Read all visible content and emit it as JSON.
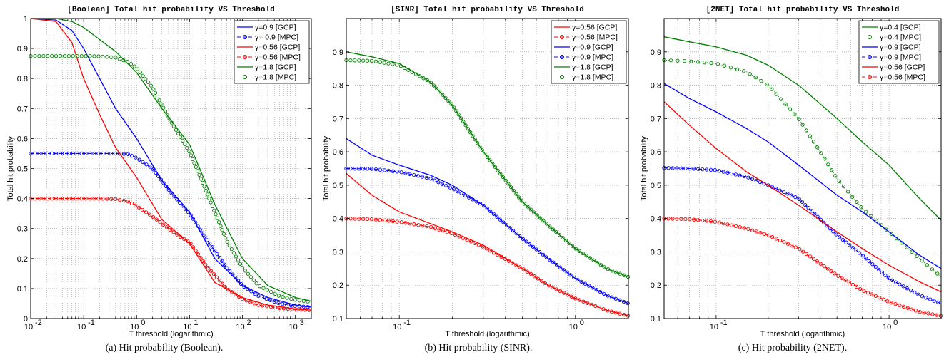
{
  "chart_data": [
    {
      "type": "line",
      "title": "[Boolean] Total hit probability VS Threshold",
      "xlabel": "T threshold (logarithmic)",
      "ylabel": "Total hit probability",
      "caption": "(a) Hit probability (Boolean).",
      "xscale": "log",
      "xlim": [
        0.01,
        2000
      ],
      "ylim": [
        0,
        1
      ],
      "xticks": [
        {
          "v": 0.01,
          "b": "10",
          "e": "-2"
        },
        {
          "v": 0.1,
          "b": "10",
          "e": "-1"
        },
        {
          "v": 1,
          "b": "10",
          "e": "0"
        },
        {
          "v": 10,
          "b": "10",
          "e": "1"
        },
        {
          "v": 100,
          "b": "10",
          "e": "2"
        },
        {
          "v": 1000,
          "b": "10",
          "e": "3"
        }
      ],
      "yticks": [
        "0",
        "0.1",
        "0.2",
        "0.3",
        "0.4",
        "0.5",
        "0.6",
        "0.7",
        "0.8",
        "0.9",
        "1"
      ],
      "grid": true,
      "legend_position": "top-right",
      "series": [
        {
          "name": "γ=0.9 [GCP]",
          "color": "#0000ff",
          "style": "solid",
          "x": [
            0.01,
            0.03,
            0.06,
            0.1,
            0.2,
            0.4,
            1,
            3,
            10,
            30,
            100,
            300,
            1000,
            2000
          ],
          "y": [
            1.0,
            0.995,
            0.96,
            0.9,
            0.8,
            0.7,
            0.6,
            0.46,
            0.355,
            0.2,
            0.11,
            0.07,
            0.045,
            0.038
          ]
        },
        {
          "name": "γ= 0.9 [MPC]",
          "color": "#0000ff",
          "style": "dash-circle",
          "x": [
            0.01,
            0.02,
            0.05,
            0.1,
            0.2,
            0.4,
            0.7,
            1,
            2,
            4,
            7,
            10,
            20,
            50,
            100,
            200,
            500,
            1000,
            2000
          ],
          "y": [
            0.55,
            0.55,
            0.55,
            0.55,
            0.55,
            0.55,
            0.548,
            0.535,
            0.5,
            0.43,
            0.38,
            0.35,
            0.27,
            0.17,
            0.11,
            0.075,
            0.05,
            0.042,
            0.038
          ]
        },
        {
          "name": "γ=0.56 [GCP]",
          "color": "#ff0000",
          "style": "solid",
          "x": [
            0.01,
            0.03,
            0.06,
            0.1,
            0.2,
            0.4,
            1,
            3,
            10,
            30,
            100,
            300,
            1000,
            2000
          ],
          "y": [
            1.0,
            0.99,
            0.92,
            0.8,
            0.68,
            0.57,
            0.47,
            0.33,
            0.25,
            0.12,
            0.07,
            0.045,
            0.032,
            0.028
          ]
        },
        {
          "name": "γ=0.56 [MPC]",
          "color": "#ff0000",
          "style": "dash-circle",
          "x": [
            0.01,
            0.02,
            0.05,
            0.1,
            0.2,
            0.4,
            0.7,
            1,
            2,
            4,
            7,
            10,
            20,
            50,
            100,
            200,
            500,
            1000,
            2000
          ],
          "y": [
            0.4,
            0.4,
            0.4,
            0.4,
            0.4,
            0.398,
            0.39,
            0.375,
            0.34,
            0.3,
            0.27,
            0.255,
            0.18,
            0.1,
            0.065,
            0.045,
            0.035,
            0.03,
            0.028
          ]
        },
        {
          "name": "γ=1.8 [GCP]",
          "color": "#008000",
          "style": "solid",
          "x": [
            0.01,
            0.03,
            0.06,
            0.1,
            0.2,
            0.4,
            1,
            3,
            10,
            30,
            100,
            300,
            1000,
            2000
          ],
          "y": [
            1.0,
            1.0,
            0.99,
            0.97,
            0.93,
            0.89,
            0.82,
            0.7,
            0.58,
            0.38,
            0.2,
            0.11,
            0.07,
            0.058
          ]
        },
        {
          "name": "γ=1.8 [MPC]",
          "color": "#008000",
          "style": "circle",
          "x": [
            0.01,
            0.02,
            0.05,
            0.1,
            0.2,
            0.4,
            0.7,
            1,
            2,
            4,
            7,
            10,
            20,
            50,
            100,
            200,
            500,
            1000,
            2000
          ],
          "y": [
            0.875,
            0.875,
            0.875,
            0.875,
            0.874,
            0.87,
            0.855,
            0.835,
            0.77,
            0.67,
            0.6,
            0.555,
            0.43,
            0.26,
            0.17,
            0.11,
            0.075,
            0.062,
            0.055
          ]
        }
      ]
    },
    {
      "type": "line",
      "title": "[SINR] Total hit probability VS Threshold",
      "xlabel": "T threshold (logarithmic)",
      "ylabel": "Total hit probability",
      "caption": "(b) Hit probability (SINR).",
      "xscale": "log",
      "xlim": [
        0.05,
        2
      ],
      "ylim": [
        0.1,
        1
      ],
      "xticks": [
        {
          "v": 0.1,
          "b": "10",
          "e": "-1"
        },
        {
          "v": 1,
          "b": "10",
          "e": "0"
        }
      ],
      "yticks": [
        "0.1",
        "0.2",
        "0.3",
        "0.4",
        "0.5",
        "0.6",
        "0.7",
        "0.8",
        "0.9"
      ],
      "grid": true,
      "legend_position": "top-right",
      "series": [
        {
          "name": "γ=0.56 [GCP]",
          "color": "#ff0000",
          "style": "solid",
          "x": [
            0.05,
            0.07,
            0.1,
            0.15,
            0.2,
            0.3,
            0.5,
            0.7,
            1,
            1.5,
            2
          ],
          "y": [
            0.535,
            0.47,
            0.42,
            0.385,
            0.36,
            0.32,
            0.25,
            0.2,
            0.16,
            0.125,
            0.108
          ]
        },
        {
          "name": "γ=0.56 [MPC]",
          "color": "#ff0000",
          "style": "dash-circle",
          "x": [
            0.05,
            0.07,
            0.1,
            0.15,
            0.2,
            0.3,
            0.5,
            0.7,
            1,
            1.5,
            2
          ],
          "y": [
            0.4,
            0.398,
            0.39,
            0.375,
            0.355,
            0.315,
            0.25,
            0.2,
            0.16,
            0.125,
            0.108
          ]
        },
        {
          "name": "γ=0.9 [GCP]",
          "color": "#0000ff",
          "style": "solid",
          "x": [
            0.05,
            0.07,
            0.1,
            0.15,
            0.2,
            0.3,
            0.5,
            0.7,
            1,
            1.5,
            2
          ],
          "y": [
            0.64,
            0.59,
            0.56,
            0.53,
            0.5,
            0.44,
            0.34,
            0.28,
            0.22,
            0.17,
            0.145
          ]
        },
        {
          "name": "γ=0.9 [MPC]",
          "color": "#0000ff",
          "style": "dash-circle",
          "x": [
            0.05,
            0.07,
            0.1,
            0.15,
            0.2,
            0.3,
            0.5,
            0.7,
            1,
            1.5,
            2
          ],
          "y": [
            0.55,
            0.549,
            0.54,
            0.52,
            0.49,
            0.44,
            0.34,
            0.28,
            0.22,
            0.17,
            0.145
          ]
        },
        {
          "name": "γ=1.8 [GCP]",
          "color": "#008000",
          "style": "solid",
          "x": [
            0.05,
            0.07,
            0.1,
            0.15,
            0.2,
            0.3,
            0.5,
            0.7,
            1,
            1.5,
            2
          ],
          "y": [
            0.9,
            0.885,
            0.865,
            0.81,
            0.74,
            0.6,
            0.45,
            0.38,
            0.31,
            0.25,
            0.225
          ]
        },
        {
          "name": "γ=1.8 [MPC]",
          "color": "#008000",
          "style": "circle",
          "x": [
            0.05,
            0.07,
            0.1,
            0.15,
            0.2,
            0.3,
            0.5,
            0.7,
            1,
            1.5,
            2
          ],
          "y": [
            0.875,
            0.873,
            0.86,
            0.81,
            0.74,
            0.6,
            0.45,
            0.38,
            0.31,
            0.25,
            0.225
          ]
        }
      ]
    },
    {
      "type": "line",
      "title": "[2NET] Total hit probability VS Threshold",
      "xlabel": "T threshold (logarithmic)",
      "ylabel": "Total hit probability",
      "caption": "(c) Hit probability (2NET).",
      "xscale": "log",
      "xlim": [
        0.05,
        2
      ],
      "ylim": [
        0.1,
        1
      ],
      "xticks": [
        {
          "v": 0.1,
          "b": "10",
          "e": "-1"
        },
        {
          "v": 1,
          "b": "10",
          "e": "0"
        }
      ],
      "yticks": [
        "0.1",
        "0.2",
        "0.3",
        "0.4",
        "0.5",
        "0.6",
        "0.7",
        "0.8",
        "0.9"
      ],
      "grid": true,
      "legend_position": "top-right",
      "series": [
        {
          "name": "γ=0.4 [GCP]",
          "color": "#008000",
          "style": "solid",
          "x": [
            0.05,
            0.07,
            0.1,
            0.15,
            0.2,
            0.3,
            0.5,
            0.7,
            1,
            1.5,
            2
          ],
          "y": [
            0.945,
            0.93,
            0.915,
            0.89,
            0.86,
            0.8,
            0.7,
            0.63,
            0.56,
            0.46,
            0.395
          ]
        },
        {
          "name": "γ=0.4 [MPC]",
          "color": "#008000",
          "style": "dot-circle",
          "x": [
            0.05,
            0.07,
            0.1,
            0.15,
            0.2,
            0.3,
            0.4,
            0.5,
            0.7,
            1,
            1.5,
            2
          ],
          "y": [
            0.875,
            0.872,
            0.865,
            0.84,
            0.8,
            0.7,
            0.6,
            0.52,
            0.43,
            0.36,
            0.28,
            0.225
          ]
        },
        {
          "name": "γ=0.9 [GCP]",
          "color": "#0000ff",
          "style": "solid",
          "x": [
            0.05,
            0.07,
            0.1,
            0.15,
            0.2,
            0.3,
            0.5,
            0.7,
            1,
            1.5,
            2
          ],
          "y": [
            0.805,
            0.76,
            0.72,
            0.67,
            0.63,
            0.56,
            0.47,
            0.42,
            0.36,
            0.29,
            0.25
          ]
        },
        {
          "name": "γ=0.9 [MPC]",
          "color": "#0000ff",
          "style": "dash-circle",
          "x": [
            0.05,
            0.07,
            0.1,
            0.15,
            0.2,
            0.3,
            0.5,
            0.7,
            1,
            1.5,
            2
          ],
          "y": [
            0.552,
            0.55,
            0.545,
            0.525,
            0.5,
            0.46,
            0.35,
            0.29,
            0.22,
            0.17,
            0.145
          ]
        },
        {
          "name": "γ=0.56 [GCP]",
          "color": "#ff0000",
          "style": "solid",
          "x": [
            0.05,
            0.07,
            0.1,
            0.15,
            0.2,
            0.3,
            0.5,
            0.7,
            1,
            1.5,
            2
          ],
          "y": [
            0.75,
            0.68,
            0.61,
            0.54,
            0.5,
            0.44,
            0.36,
            0.31,
            0.26,
            0.21,
            0.18
          ]
        },
        {
          "name": "γ=0.56 [MPC]",
          "color": "#ff0000",
          "style": "dash-circle",
          "x": [
            0.05,
            0.07,
            0.1,
            0.15,
            0.2,
            0.3,
            0.5,
            0.7,
            1,
            1.5,
            2
          ],
          "y": [
            0.4,
            0.398,
            0.39,
            0.37,
            0.35,
            0.31,
            0.23,
            0.185,
            0.15,
            0.12,
            0.108
          ]
        }
      ]
    }
  ]
}
